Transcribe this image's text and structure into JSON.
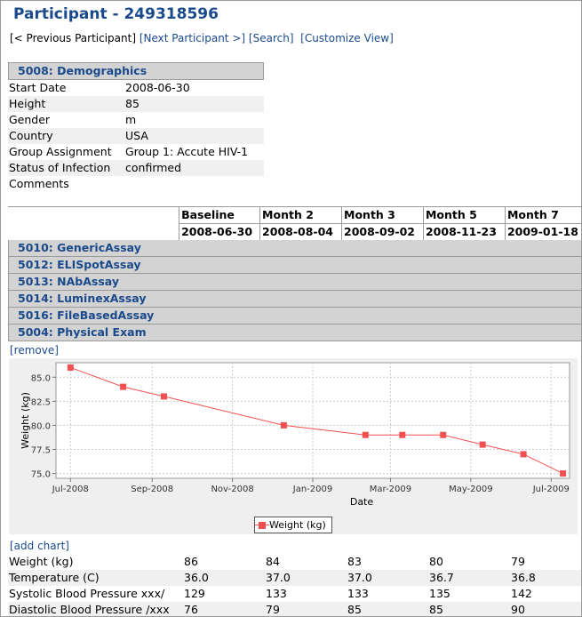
{
  "page": {
    "title": "Participant - 249318596"
  },
  "nav": {
    "prev": "[< Previous Participant]",
    "next": "[Next Participant >]",
    "search": "[Search]",
    "customize": "[Customize View]"
  },
  "demographics": {
    "header": "5008: Demographics",
    "rows": [
      {
        "label": "Start Date",
        "value": "2008-06-30"
      },
      {
        "label": "Height",
        "value": "85"
      },
      {
        "label": "Gender",
        "value": "m"
      },
      {
        "label": "Country",
        "value": "USA"
      },
      {
        "label": "Group Assignment",
        "value": "Group 1: Accute HIV-1"
      },
      {
        "label": "Status of Infection",
        "value": "confirmed"
      },
      {
        "label": "Comments",
        "value": ""
      }
    ]
  },
  "visits": [
    {
      "name": "Baseline",
      "date": "2008-06-30"
    },
    {
      "name": "Month 2",
      "date": "2008-08-04"
    },
    {
      "name": "Month 3",
      "date": "2008-09-02"
    },
    {
      "name": "Month 5",
      "date": "2008-11-23"
    },
    {
      "name": "Month 7",
      "date": "2009-01-18"
    }
  ],
  "datasets": [
    "5010: GenericAssay",
    "5012: ELISpotAssay",
    "5013: NAbAssay",
    "5014: LuminexAssay",
    "5016: FileBasedAssay",
    "5004: Physical Exam"
  ],
  "links": {
    "remove": "[remove]",
    "add_chart": "[add chart]"
  },
  "chart_data": {
    "type": "line",
    "xlabel": "Date",
    "ylabel": "Weight (kg)",
    "ylim": [
      74.5,
      86.5
    ],
    "yticks": [
      "75.0",
      "77.5",
      "80.0",
      "82.5",
      "85.0"
    ],
    "xticks": [
      "Jul-2008",
      "Sep-2008",
      "Nov-2008",
      "Jan-2009",
      "Mar-2009",
      "May-2009",
      "Jul-2009"
    ],
    "legend_placement": "bottom",
    "grid": true,
    "color": "#f05050",
    "series": [
      {
        "name": "Weight (kg)",
        "x": [
          "2008-07-01",
          "2008-08-10",
          "2008-09-10",
          "2008-12-10",
          "2009-02-10",
          "2009-03-10",
          "2009-04-10",
          "2009-05-10",
          "2009-06-10",
          "2009-07-10"
        ],
        "y": [
          86,
          84,
          83,
          80,
          79,
          79,
          79,
          78,
          77,
          75
        ]
      }
    ]
  },
  "measures": [
    {
      "label": "Weight (kg)",
      "values": [
        "86",
        "84",
        "83",
        "80",
        "79"
      ]
    },
    {
      "label": "Temperature (C)",
      "values": [
        "36.0",
        "37.0",
        "37.0",
        "36.7",
        "36.8"
      ]
    },
    {
      "label": "Systolic Blood Pressure xxx/",
      "values": [
        "129",
        "133",
        "133",
        "135",
        "142"
      ]
    },
    {
      "label": "Diastolic Blood Pressure /xxx",
      "values": [
        "76",
        "79",
        "85",
        "85",
        "90"
      ]
    }
  ]
}
